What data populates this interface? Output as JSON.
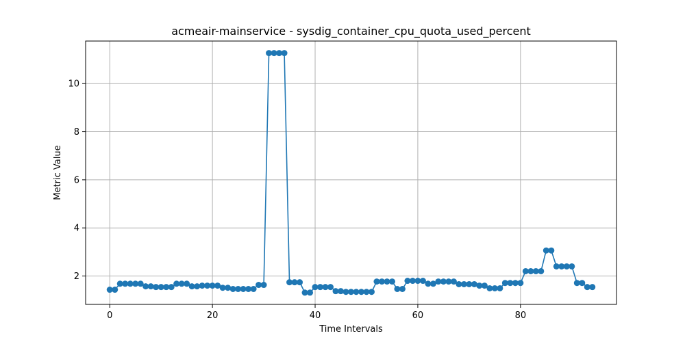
{
  "chart_data": {
    "type": "line",
    "title": "acmeair-mainservice - sysdig_container_cpu_quota_used_percent",
    "xlabel": "Time Intervals",
    "ylabel": "Metric Value",
    "xlim": [
      -4.7,
      98.7
    ],
    "ylim": [
      0.82,
      11.77
    ],
    "xticks": [
      0,
      20,
      40,
      60,
      80
    ],
    "yticks": [
      2,
      4,
      6,
      8,
      10
    ],
    "grid": true,
    "color": "#1f77b4",
    "marker": "circle",
    "series": [
      {
        "values": [
          1.43,
          1.43,
          1.68,
          1.68,
          1.68,
          1.68,
          1.68,
          1.57,
          1.57,
          1.54,
          1.54,
          1.54,
          1.54,
          1.68,
          1.68,
          1.68,
          1.57,
          1.57,
          1.6,
          1.6,
          1.6,
          1.6,
          1.51,
          1.51,
          1.46,
          1.46,
          1.46,
          1.46,
          1.46,
          1.63,
          1.63,
          11.27,
          11.27,
          11.27,
          11.27,
          1.74,
          1.74,
          1.74,
          1.31,
          1.31,
          1.54,
          1.54,
          1.54,
          1.54,
          1.37,
          1.37,
          1.34,
          1.34,
          1.34,
          1.34,
          1.34,
          1.34,
          1.77,
          1.77,
          1.77,
          1.77,
          1.46,
          1.46,
          1.8,
          1.8,
          1.8,
          1.8,
          1.68,
          1.68,
          1.77,
          1.77,
          1.77,
          1.77,
          1.66,
          1.66,
          1.66,
          1.66,
          1.6,
          1.6,
          1.49,
          1.49,
          1.49,
          1.71,
          1.71,
          1.71,
          1.71,
          2.2,
          2.2,
          2.2,
          2.2,
          3.06,
          3.06,
          2.4,
          2.4,
          2.4,
          2.4,
          1.71,
          1.71,
          1.54,
          1.54
        ]
      }
    ]
  }
}
